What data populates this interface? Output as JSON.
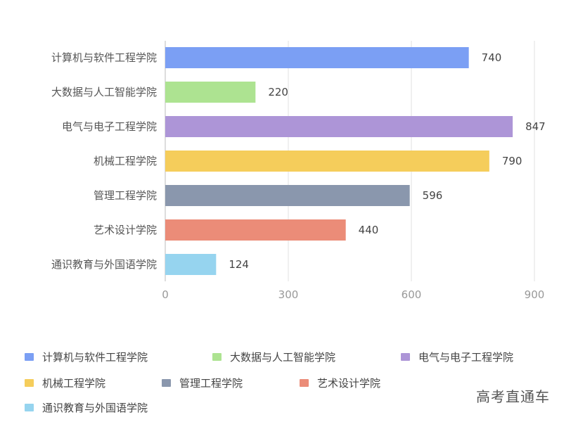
{
  "chart_data": {
    "type": "bar",
    "orientation": "horizontal",
    "categories": [
      "计算机与软件工程学院",
      "大数据与人工智能学院",
      "电气与电子工程学院",
      "机械工程学院",
      "管理工程学院",
      "艺术设计学院",
      "通识教育与外国语学院"
    ],
    "values": [
      740,
      220,
      847,
      790,
      596,
      440,
      124
    ],
    "colors": [
      "#7b9ff4",
      "#ade391",
      "#ad95d7",
      "#f5cd5b",
      "#8a97ad",
      "#eb8c78",
      "#96d4ef"
    ],
    "xlim": [
      0,
      900
    ],
    "xticks": [
      0,
      300,
      600,
      900
    ],
    "grid": true,
    "legend": {
      "position": "bottom",
      "items": [
        "计算机与软件工程学院",
        "大数据与人工智能学院",
        "电气与电子工程学院",
        "机械工程学院",
        "管理工程学院",
        "艺术设计学院",
        "通识教育与外国语学院"
      ]
    }
  },
  "watermark": "高考直通车"
}
